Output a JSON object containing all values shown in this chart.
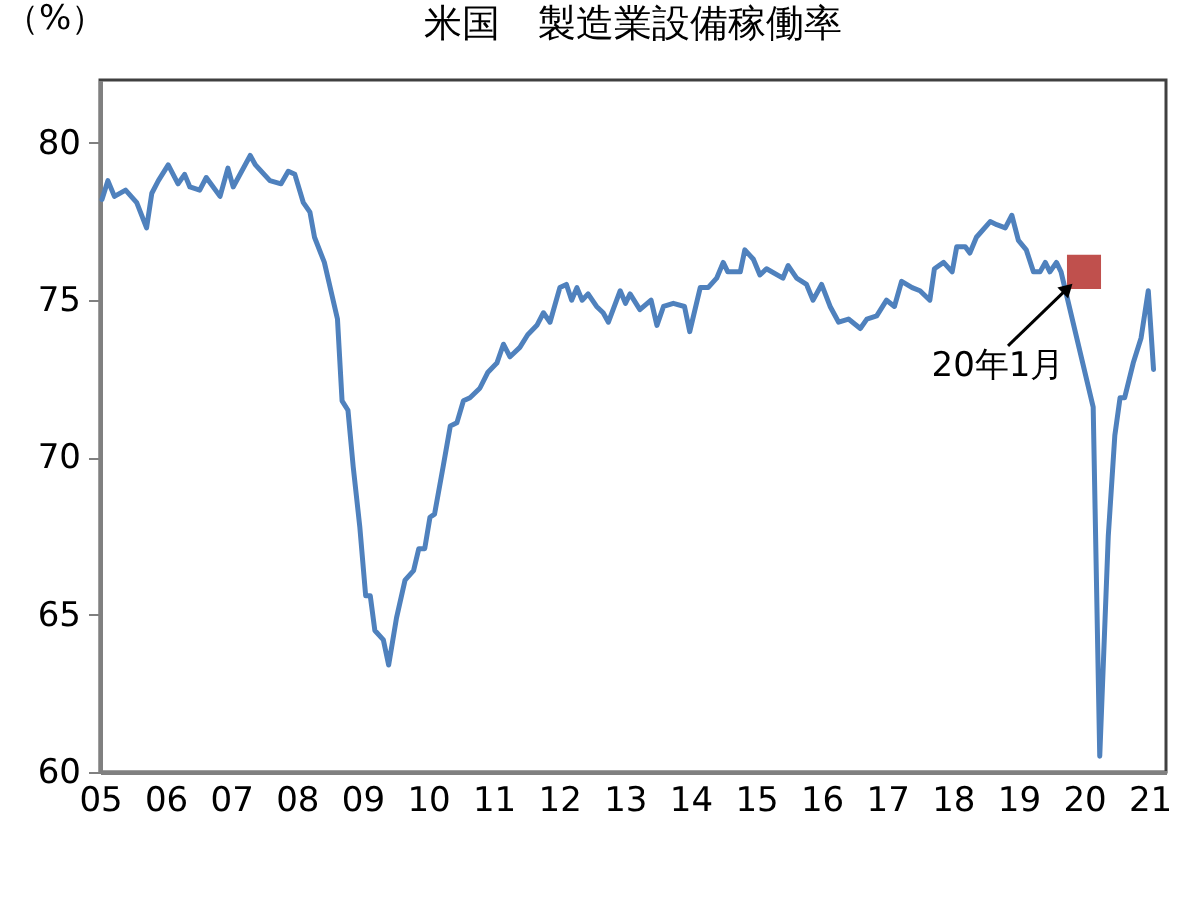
{
  "chart_data": {
    "type": "line",
    "title": "米国　製造業設備稼働率",
    "ylabel": "（%）",
    "xlim": [
      2005,
      2021.25
    ],
    "ylim": [
      60,
      82
    ],
    "xticks": [
      {
        "value": 2005,
        "label": "05"
      },
      {
        "value": 2006,
        "label": "06"
      },
      {
        "value": 2007,
        "label": "07"
      },
      {
        "value": 2008,
        "label": "08"
      },
      {
        "value": 2009,
        "label": "09"
      },
      {
        "value": 2010,
        "label": "10"
      },
      {
        "value": 2011,
        "label": "11"
      },
      {
        "value": 2012,
        "label": "12"
      },
      {
        "value": 2013,
        "label": "13"
      },
      {
        "value": 2014,
        "label": "14"
      },
      {
        "value": 2015,
        "label": "15"
      },
      {
        "value": 2016,
        "label": "16"
      },
      {
        "value": 2017,
        "label": "17"
      },
      {
        "value": 2018,
        "label": "18"
      },
      {
        "value": 2019,
        "label": "19"
      },
      {
        "value": 2020,
        "label": "20"
      },
      {
        "value": 2021,
        "label": "21"
      }
    ],
    "yticks": [
      60,
      65,
      70,
      75,
      80
    ],
    "grid": false,
    "annotations": [
      {
        "text": "20年1月",
        "x": 2020,
        "y": 75.9
      }
    ],
    "series": [
      {
        "type": "line",
        "color": "#4f81bd",
        "marker": "none",
        "line_style": "solid",
        "x": [
          2005.03,
          2005.12,
          2005.22,
          2005.39,
          2005.56,
          2005.71,
          2005.79,
          2005.89,
          2006.04,
          2006.19,
          2006.29,
          2006.37,
          2006.52,
          2006.62,
          2006.83,
          2006.95,
          2007.03,
          2007.29,
          2007.37,
          2007.59,
          2007.76,
          2007.87,
          2007.97,
          2008.1,
          2008.2,
          2008.27,
          2008.42,
          2008.62,
          2008.69,
          2008.78,
          2008.86,
          2008.96,
          2009.05,
          2009.12,
          2009.19,
          2009.32,
          2009.4,
          2009.52,
          2009.65,
          2009.78,
          2009.86,
          2009.95,
          2010.03,
          2010.1,
          2010.23,
          2010.34,
          2010.44,
          2010.54,
          2010.64,
          2010.79,
          2010.91,
          2011.05,
          2011.15,
          2011.25,
          2011.4,
          2011.52,
          2011.66,
          2011.76,
          2011.86,
          2012.01,
          2012.11,
          2012.19,
          2012.27,
          2012.35,
          2012.44,
          2012.57,
          2012.67,
          2012.75,
          2012.93,
          2013.01,
          2013.08,
          2013.23,
          2013.4,
          2013.49,
          2013.59,
          2013.74,
          2013.91,
          2013.99,
          2014.15,
          2014.27,
          2014.4,
          2014.5,
          2014.57,
          2014.76,
          2014.83,
          2014.96,
          2015.06,
          2015.16,
          2015.41,
          2015.49,
          2015.62,
          2015.77,
          2015.87,
          2016.0,
          2016.13,
          2016.26,
          2016.41,
          2016.59,
          2016.69,
          2016.84,
          2016.99,
          2017.11,
          2017.22,
          2017.38,
          2017.5,
          2017.65,
          2017.72,
          2017.86,
          2017.99,
          2018.06,
          2018.19,
          2018.26,
          2018.36,
          2018.57,
          2018.67,
          2018.8,
          2018.9,
          2019.0,
          2019.12,
          2019.23,
          2019.33,
          2019.41,
          2019.48,
          2019.58,
          2019.65,
          2019.92,
          2020.04,
          2020.14,
          2020.24,
          2020.37,
          2020.47,
          2020.55,
          2020.62,
          2020.75,
          2020.87,
          2020.98,
          2021.06
        ],
        "values": [
          78.2,
          78.8,
          78.3,
          78.5,
          78.1,
          77.3,
          78.4,
          78.8,
          79.3,
          78.7,
          79.0,
          78.6,
          78.5,
          78.9,
          78.3,
          79.2,
          78.6,
          79.6,
          79.3,
          78.8,
          78.7,
          79.1,
          79.0,
          78.1,
          77.8,
          77.0,
          76.2,
          74.4,
          71.8,
          71.5,
          69.7,
          67.8,
          65.6,
          65.6,
          64.5,
          64.2,
          63.4,
          64.9,
          66.1,
          66.4,
          67.1,
          67.1,
          68.1,
          68.2,
          69.7,
          71.0,
          71.1,
          71.8,
          71.9,
          72.2,
          72.7,
          73.0,
          73.6,
          73.2,
          73.5,
          73.9,
          74.2,
          74.6,
          74.3,
          75.4,
          75.5,
          75.0,
          75.4,
          75.0,
          75.2,
          74.8,
          74.6,
          74.3,
          75.3,
          74.9,
          75.2,
          74.7,
          75.0,
          74.2,
          74.8,
          74.9,
          74.8,
          74.0,
          75.4,
          75.4,
          75.7,
          76.2,
          75.9,
          75.9,
          76.6,
          76.3,
          75.8,
          76.0,
          75.7,
          76.1,
          75.7,
          75.5,
          75.0,
          75.5,
          74.8,
          74.3,
          74.4,
          74.1,
          74.4,
          74.5,
          75.0,
          74.8,
          75.6,
          75.4,
          75.3,
          75.0,
          76.0,
          76.2,
          75.9,
          76.7,
          76.7,
          76.5,
          77.0,
          77.5,
          77.4,
          77.3,
          77.7,
          76.9,
          76.6,
          75.9,
          75.9,
          76.2,
          75.9,
          76.2,
          75.9,
          null,
          null,
          71.6,
          60.5,
          67.5,
          70.7,
          71.9,
          71.9,
          73.0,
          73.8,
          75.3,
          72.8
        ]
      },
      {
        "type": "scatter",
        "color": "#c0504d",
        "marker": "square",
        "x": [
          2020.0
        ],
        "values": [
          75.9
        ]
      }
    ]
  }
}
